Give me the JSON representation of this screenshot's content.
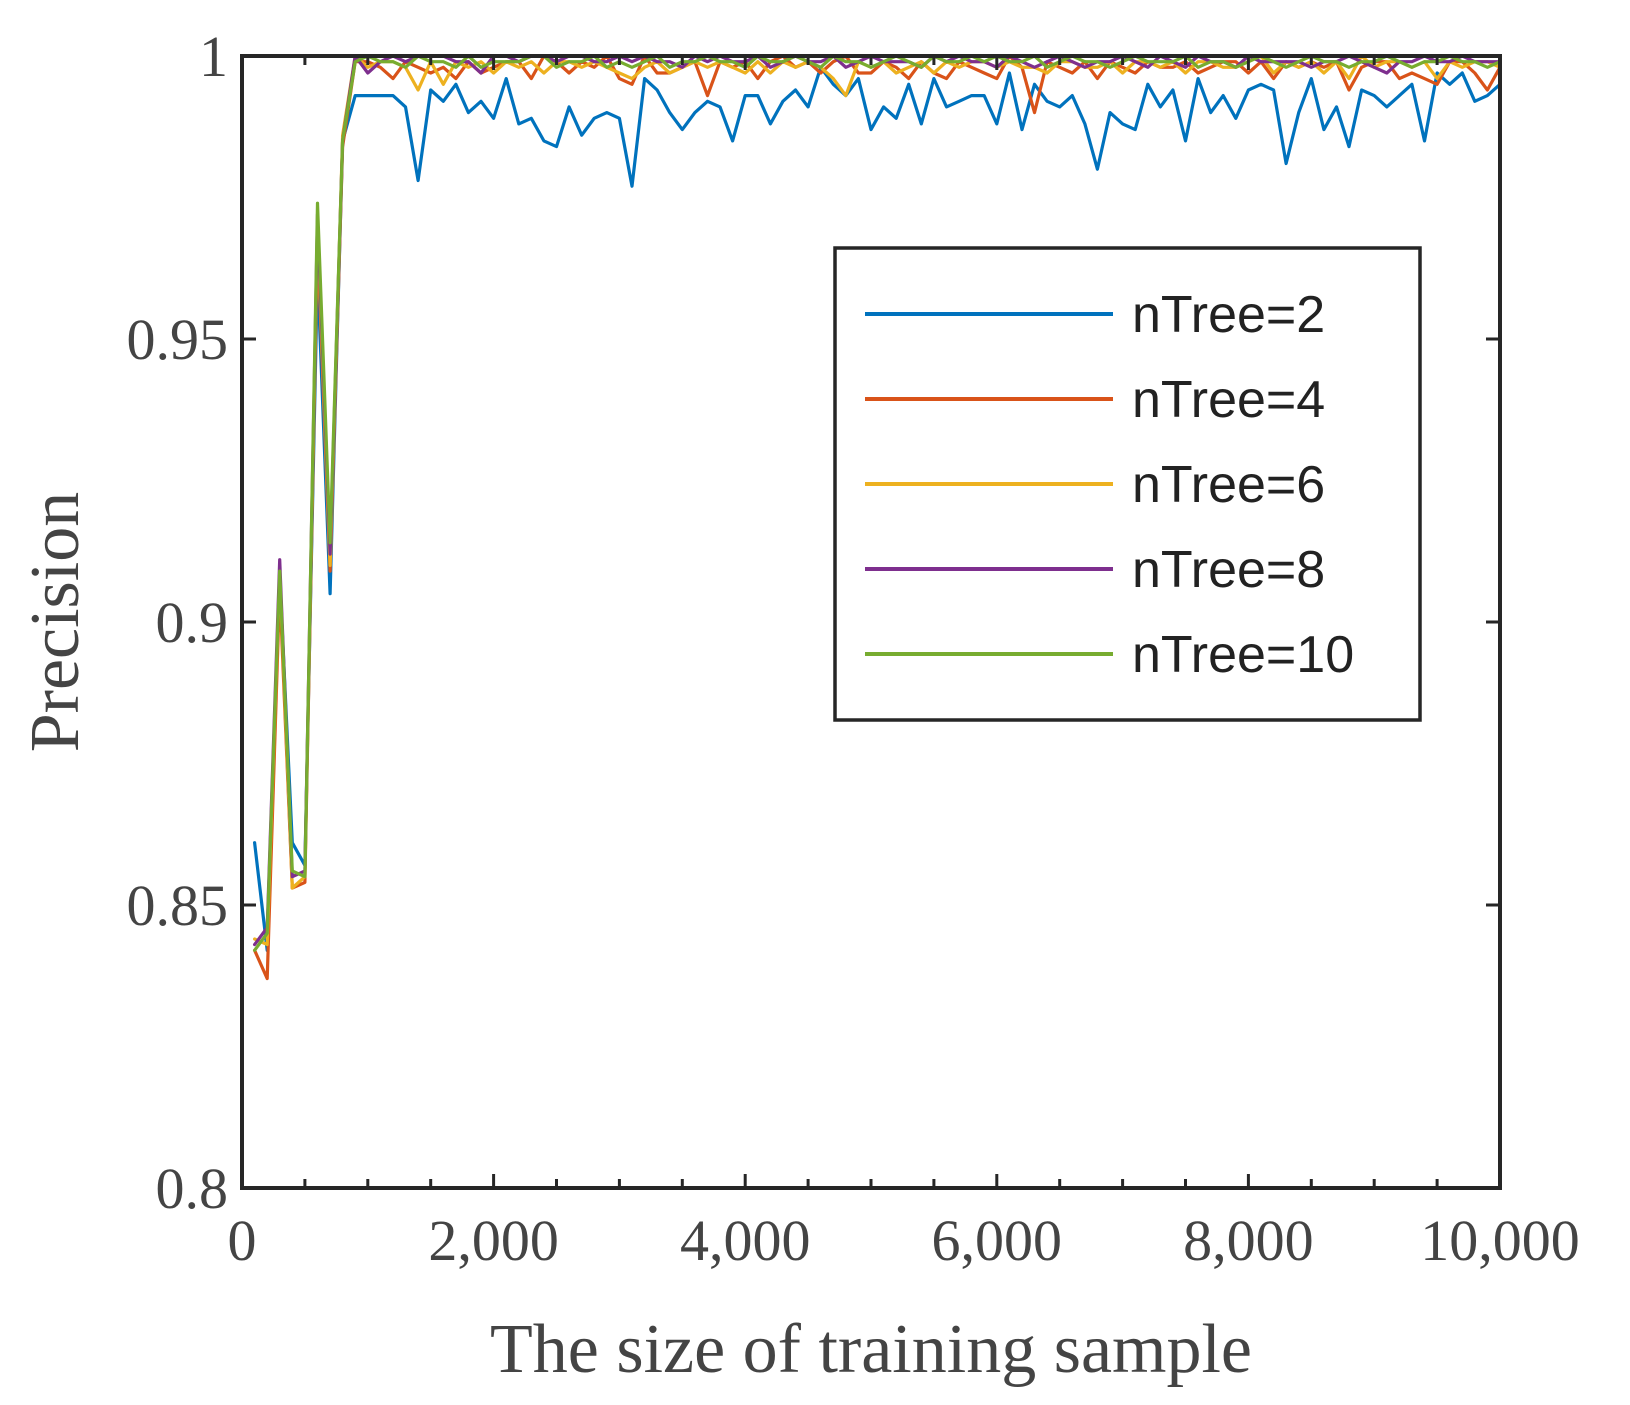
{
  "chart_data": {
    "type": "line",
    "title": "",
    "xlabel": "The size of training sample",
    "ylabel": "Precision",
    "xlim": [
      0,
      10000
    ],
    "ylim": [
      0.8,
      1.0
    ],
    "xticks": [
      0,
      2000,
      4000,
      6000,
      8000,
      10000
    ],
    "xtick_labels": [
      "0",
      "2,000",
      "4,000",
      "6,000",
      "8,000",
      "10,000"
    ],
    "yticks": [
      0.8,
      0.85,
      0.9,
      0.95,
      1.0
    ],
    "ytick_labels": [
      "0.8",
      "0.85",
      "0.9",
      "0.95",
      "1"
    ],
    "grid": false,
    "legend_position": "top-right",
    "x": [
      100,
      200,
      300,
      400,
      500,
      600,
      700,
      800,
      900,
      1000,
      1100,
      1200,
      1300,
      1400,
      1500,
      1600,
      1700,
      1800,
      1900,
      2000,
      2100,
      2200,
      2300,
      2400,
      2500,
      2600,
      2700,
      2800,
      2900,
      3000,
      3100,
      3200,
      3300,
      3400,
      3500,
      3600,
      3700,
      3800,
      3900,
      4000,
      4100,
      4200,
      4300,
      4400,
      4500,
      4600,
      4700,
      4800,
      4900,
      5000,
      5100,
      5200,
      5300,
      5400,
      5500,
      5600,
      5700,
      5800,
      5900,
      6000,
      6100,
      6200,
      6300,
      6400,
      6500,
      6600,
      6700,
      6800,
      6900,
      7000,
      7100,
      7200,
      7300,
      7400,
      7500,
      7600,
      7700,
      7800,
      7900,
      8000,
      8100,
      8200,
      8300,
      8400,
      8500,
      8600,
      8700,
      8800,
      8900,
      9000,
      9100,
      9200,
      9300,
      9400,
      9500,
      9600,
      9700,
      9800,
      9900,
      10000
    ],
    "series": [
      {
        "name": "nTree=2",
        "color": "#0072BD",
        "values": [
          0.861,
          0.842,
          0.908,
          0.861,
          0.857,
          0.962,
          0.905,
          0.985,
          0.993,
          0.993,
          0.993,
          0.993,
          0.991,
          0.978,
          0.994,
          0.992,
          0.995,
          0.99,
          0.992,
          0.989,
          0.996,
          0.988,
          0.989,
          0.985,
          0.984,
          0.991,
          0.986,
          0.989,
          0.99,
          0.989,
          0.977,
          0.996,
          0.994,
          0.99,
          0.987,
          0.99,
          0.992,
          0.991,
          0.985,
          0.993,
          0.993,
          0.988,
          0.992,
          0.994,
          0.991,
          0.998,
          0.995,
          0.993,
          0.996,
          0.987,
          0.991,
          0.989,
          0.995,
          0.988,
          0.996,
          0.991,
          0.992,
          0.993,
          0.993,
          0.988,
          0.997,
          0.987,
          0.995,
          0.992,
          0.991,
          0.993,
          0.988,
          0.98,
          0.99,
          0.988,
          0.987,
          0.995,
          0.991,
          0.994,
          0.985,
          0.996,
          0.99,
          0.993,
          0.989,
          0.994,
          0.995,
          0.994,
          0.981,
          0.99,
          0.996,
          0.987,
          0.991,
          0.984,
          0.994,
          0.993,
          0.991,
          0.993,
          0.995,
          0.985,
          0.997,
          0.995,
          0.997,
          0.992,
          0.993,
          0.995
        ]
      },
      {
        "name": "nTree=4",
        "color": "#D95319",
        "values": [
          0.842,
          0.837,
          0.906,
          0.853,
          0.854,
          0.968,
          0.909,
          0.984,
          0.999,
          0.999,
          0.998,
          0.996,
          0.999,
          0.998,
          0.997,
          0.998,
          0.996,
          0.999,
          0.997,
          0.998,
          0.999,
          0.999,
          0.996,
          1.0,
          0.999,
          0.997,
          0.999,
          0.998,
          1.0,
          0.996,
          0.995,
          1.0,
          0.997,
          0.997,
          0.998,
          0.999,
          0.993,
          0.999,
          0.998,
          0.999,
          0.996,
          0.999,
          1.0,
          0.998,
          0.999,
          0.997,
          0.999,
          1.0,
          0.997,
          0.997,
          0.999,
          0.998,
          0.996,
          0.999,
          0.997,
          0.996,
          0.999,
          0.998,
          0.997,
          0.996,
          1.0,
          0.998,
          0.99,
          0.999,
          0.998,
          0.997,
          0.999,
          0.996,
          0.999,
          0.998,
          0.997,
          0.999,
          0.998,
          0.998,
          0.999,
          0.997,
          0.998,
          0.999,
          0.999,
          0.997,
          0.999,
          0.996,
          0.999,
          0.998,
          0.999,
          0.998,
          0.999,
          0.994,
          0.998,
          0.999,
          0.999,
          0.996,
          0.997,
          0.996,
          0.995,
          0.999,
          0.999,
          0.997,
          0.994,
          0.998
        ]
      },
      {
        "name": "nTree=6",
        "color": "#EDB120",
        "values": [
          0.844,
          0.843,
          0.909,
          0.853,
          0.855,
          0.97,
          0.91,
          0.986,
          1.0,
          0.998,
          0.999,
          0.999,
          0.998,
          0.994,
          0.999,
          0.995,
          0.999,
          0.998,
          0.999,
          0.997,
          0.999,
          0.998,
          0.999,
          0.997,
          0.999,
          0.999,
          0.998,
          0.999,
          0.998,
          0.997,
          0.996,
          0.998,
          0.999,
          0.997,
          0.998,
          0.999,
          0.998,
          0.999,
          0.998,
          0.997,
          0.999,
          0.997,
          0.999,
          0.998,
          0.999,
          0.998,
          0.996,
          0.993,
          0.999,
          0.998,
          0.999,
          0.997,
          0.998,
          0.999,
          0.997,
          0.999,
          0.998,
          0.999,
          0.999,
          0.998,
          0.999,
          0.998,
          0.998,
          0.997,
          0.999,
          0.999,
          0.998,
          0.998,
          0.999,
          0.997,
          0.999,
          0.999,
          0.998,
          0.999,
          0.997,
          0.999,
          0.999,
          0.998,
          0.998,
          0.999,
          1.0,
          0.997,
          0.999,
          0.998,
          0.999,
          0.997,
          0.999,
          0.996,
          1.0,
          0.998,
          0.999,
          0.999,
          0.998,
          0.999,
          0.996,
          0.999,
          0.998,
          0.999,
          0.999,
          0.998
        ]
      },
      {
        "name": "nTree=8",
        "color": "#7E2F8E",
        "values": [
          0.843,
          0.846,
          0.911,
          0.855,
          0.856,
          0.972,
          0.912,
          0.985,
          1.0,
          0.997,
          0.999,
          1.0,
          0.999,
          1.0,
          1.0,
          1.0,
          0.999,
          0.999,
          0.997,
          1.0,
          1.0,
          0.999,
          1.0,
          1.0,
          0.999,
          1.0,
          1.0,
          0.999,
          0.999,
          1.0,
          0.999,
          1.0,
          0.999,
          0.999,
          0.998,
          1.0,
          0.999,
          1.0,
          0.999,
          0.999,
          1.0,
          0.998,
          0.999,
          1.0,
          0.999,
          0.999,
          1.0,
          0.998,
          0.999,
          1.0,
          0.999,
          0.999,
          0.999,
          0.998,
          1.0,
          0.999,
          1.0,
          0.999,
          0.999,
          0.998,
          1.0,
          0.999,
          0.998,
          0.999,
          1.0,
          0.999,
          0.998,
          0.999,
          0.999,
          1.0,
          0.999,
          0.998,
          1.0,
          0.999,
          0.998,
          1.0,
          0.999,
          0.999,
          0.998,
          1.0,
          0.999,
          0.999,
          0.999,
          0.999,
          0.998,
          0.999,
          0.999,
          1.0,
          0.999,
          0.998,
          0.997,
          0.999,
          0.999,
          1.0,
          0.999,
          0.999,
          1.0,
          0.999,
          0.999,
          0.999
        ]
      },
      {
        "name": "nTree=10",
        "color": "#77AC30",
        "values": [
          0.842,
          0.845,
          0.909,
          0.856,
          0.855,
          0.974,
          0.914,
          0.985,
          0.999,
          1.0,
          0.999,
          0.999,
          0.998,
          1.0,
          0.999,
          0.999,
          0.998,
          1.0,
          0.998,
          0.999,
          0.999,
          0.999,
          1.0,
          1.0,
          0.998,
          0.999,
          0.999,
          1.0,
          0.998,
          0.999,
          0.998,
          0.999,
          1.0,
          0.998,
          0.999,
          0.999,
          1.0,
          0.999,
          0.999,
          0.998,
          1.0,
          0.999,
          0.999,
          1.0,
          0.999,
          0.998,
          1.0,
          0.999,
          0.999,
          0.998,
          0.999,
          1.0,
          0.999,
          0.998,
          1.0,
          0.999,
          0.999,
          1.0,
          0.999,
          1.0,
          0.999,
          0.999,
          1.0,
          0.998,
          0.999,
          1.0,
          0.999,
          0.999,
          0.998,
          0.999,
          1.0,
          0.999,
          0.999,
          0.999,
          1.0,
          0.998,
          0.999,
          0.999,
          0.998,
          0.999,
          1.0,
          0.999,
          0.998,
          0.999,
          1.0,
          0.999,
          0.999,
          0.998,
          0.999,
          0.999,
          1.0,
          0.999,
          0.998,
          0.999,
          0.999,
          1.0,
          0.999,
          0.999,
          0.998,
          0.999
        ]
      }
    ]
  }
}
